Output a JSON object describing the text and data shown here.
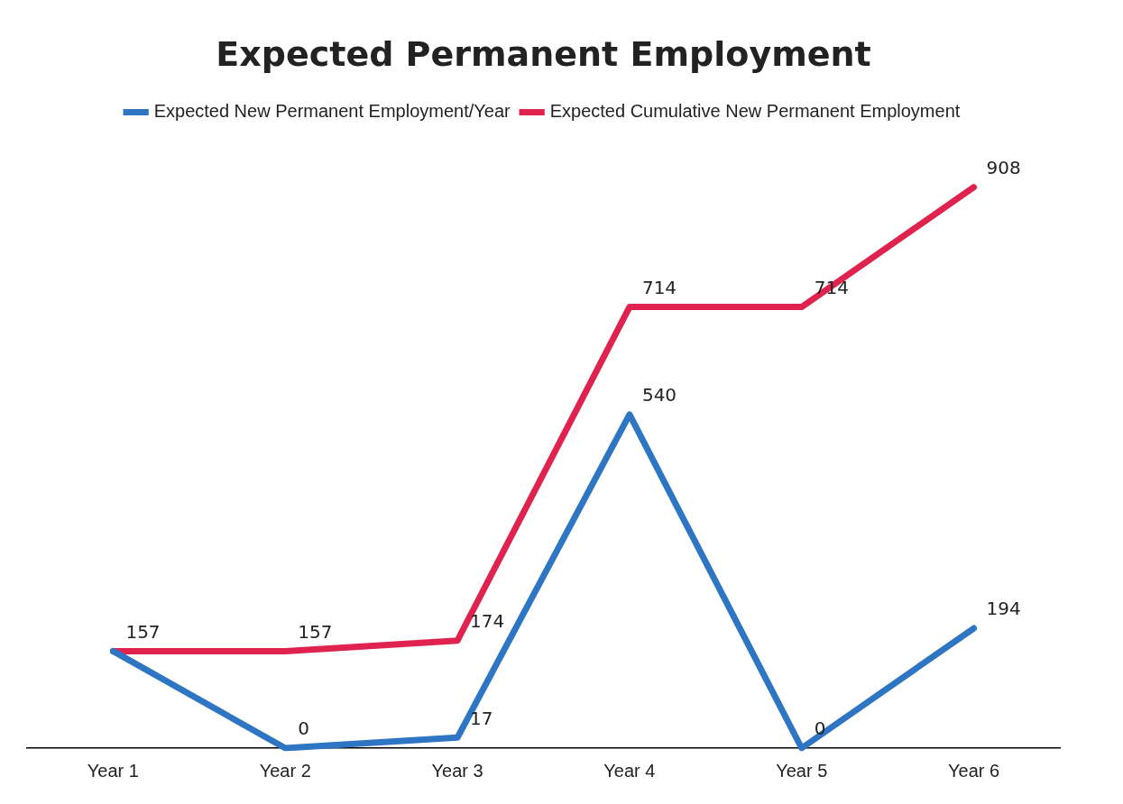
{
  "chart_data": {
    "type": "line",
    "title": "Expected Permanent Employment",
    "categories": [
      "Year 1",
      "Year 2",
      "Year 3",
      "Year 4",
      "Year 5",
      "Year 6"
    ],
    "series": [
      {
        "name": "Expected New Permanent Employment/Year",
        "color": "#2e75c3",
        "values": [
          157,
          0,
          17,
          540,
          0,
          194
        ],
        "value_labels": [
          null,
          "0",
          "17",
          "540",
          "0",
          "194"
        ]
      },
      {
        "name": "Expected Cumulative New Permanent Employment",
        "color": "#e0234e",
        "values": [
          157,
          157,
          174,
          714,
          714,
          908
        ],
        "value_labels": [
          "157",
          "157",
          "174",
          "714",
          "714",
          "908"
        ]
      }
    ],
    "legend": "top",
    "grid": false,
    "marker": "none",
    "line_style": "solid"
  }
}
